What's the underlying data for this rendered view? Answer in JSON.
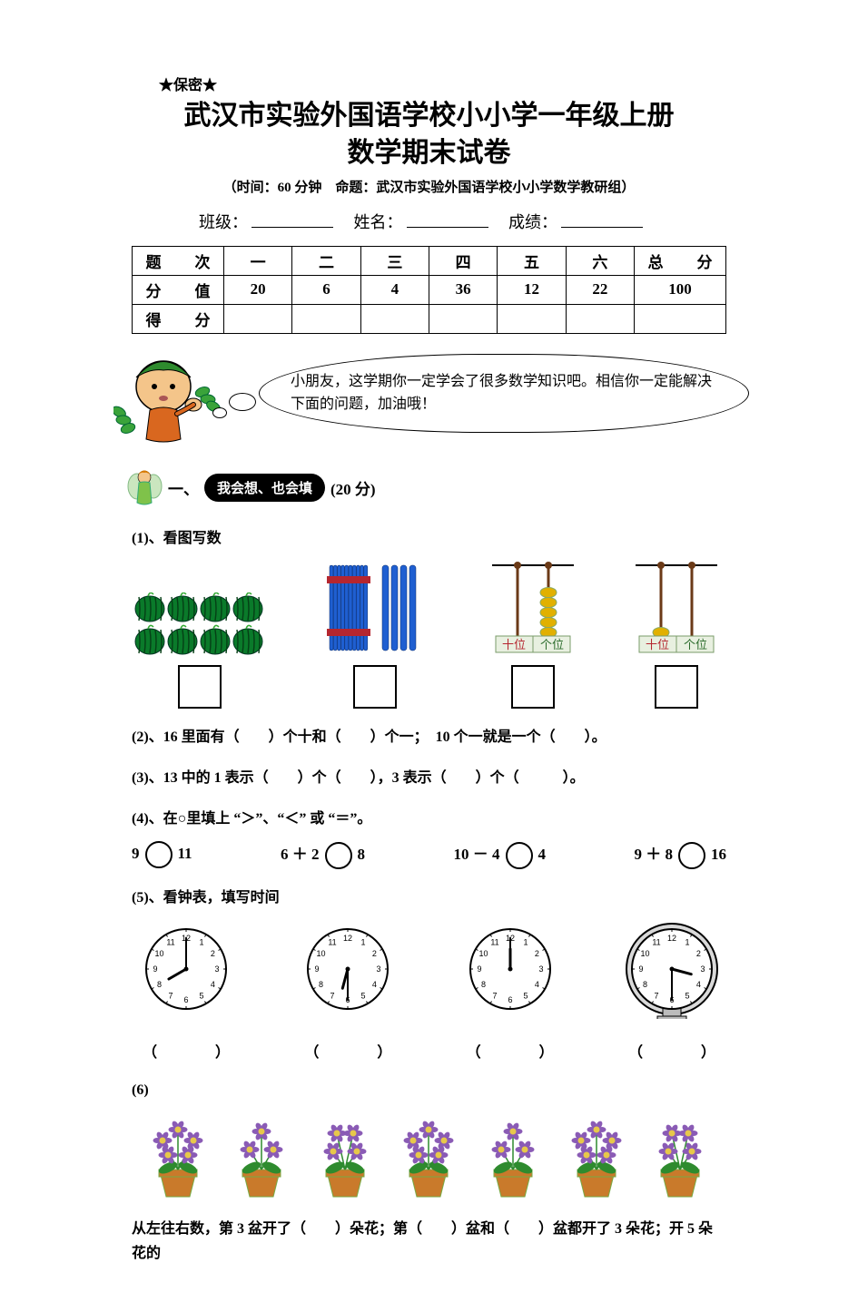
{
  "confidential": "★保密★",
  "title_l1": "武汉市实验外国语学校小小学一年级上册",
  "title_l2": "数学期末试卷",
  "subtitle": "（时间：60 分钟　命题：武汉市实验外国语学校小小学数学教研组）",
  "field_class": "班级：",
  "field_name": "姓名：",
  "field_score": "成绩：",
  "score_table": {
    "headers": [
      "题　次",
      "一",
      "二",
      "三",
      "四",
      "五",
      "六",
      "总　分"
    ],
    "row_value_label": "分　值",
    "values": [
      "20",
      "6",
      "4",
      "36",
      "12",
      "22",
      "100"
    ],
    "row_got_label": "得　分"
  },
  "bubble": "小朋友，这学期你一定学会了很多数学知识吧。相信你一定能解决下面的问题，加油哦！",
  "sec1_num": "一、",
  "sec1_pill": "我会想、也会填",
  "sec1_pts": "(20 分)",
  "q1_label": "(1)、看图写数",
  "q1_items": {
    "melons": {
      "rows": 2,
      "cols": 4,
      "fill": "#0a7a2a",
      "stripe": "#053f16"
    },
    "sticks": {
      "bundle_count": 1,
      "bundle_rods": 10,
      "loose_rods": 4,
      "rod_color": "#1f5fd1",
      "band_color": "#b5262f"
    },
    "abacus_a": {
      "tens": 0,
      "ones": 5,
      "bead_color": "#e1b000",
      "rod_color": "#6b3a17",
      "label_ten": "十位",
      "label_one": "个位"
    },
    "abacus_b": {
      "tens": 1,
      "ones": 0,
      "bead_color": "#e1b000",
      "rod_color": "#6b3a17",
      "label_ten": "十位",
      "label_one": "个位"
    }
  },
  "q2": "(2)、16 里面有（　　）个十和（　　）个一；　10 个一就是一个（　　）。",
  "q3": "(3)、13 中的 1 表示（　　）个（　　），3 表示（　　）个（　　　）。",
  "q4": "(4)、在○里填上 “＞”、“＜” 或 “＝”。",
  "q4_items": [
    "9　○　11",
    "6 ＋ 2　○　8",
    "10 － 4　○　4",
    "9 ＋ 8　○　16"
  ],
  "q4_items_parts": [
    {
      "l": "9",
      "r": "11"
    },
    {
      "l": "6 ＋ 2",
      "r": "8"
    },
    {
      "l": "10 － 4",
      "r": "4"
    },
    {
      "l": "9 ＋ 8",
      "r": "16"
    }
  ],
  "q5": "(5)、看钟表，填写时间",
  "clocks": [
    {
      "hour": 8,
      "minute": 0,
      "style": "plain"
    },
    {
      "hour": 6,
      "minute": 30,
      "style": "plain"
    },
    {
      "hour": 12,
      "minute": 0,
      "style": "plain"
    },
    {
      "hour": 3,
      "minute": 30,
      "style": "fancy"
    }
  ],
  "clock_paren": "（　　　　）",
  "q6_label": "(6)",
  "flower_pots": [
    {
      "flowers": 5,
      "petal": "#8a5bb5",
      "center": "#e7c84a"
    },
    {
      "flowers": 3,
      "petal": "#8a5bb5",
      "center": "#e7c84a"
    },
    {
      "flowers": 4,
      "petal": "#8a5bb5",
      "center": "#e7c84a"
    },
    {
      "flowers": 5,
      "petal": "#8a5bb5",
      "center": "#e7c84a"
    },
    {
      "flowers": 3,
      "petal": "#8a5bb5",
      "center": "#e7c84a"
    },
    {
      "flowers": 5,
      "petal": "#8a5bb5",
      "center": "#e7c84a"
    },
    {
      "flowers": 4,
      "petal": "#8a5bb5",
      "center": "#e7c84a"
    }
  ],
  "flower_pot_color": "#c97a2b",
  "flower_leaf_color": "#2e8b2e",
  "q6_text": "从左往右数，第 3 盆开了（　　）朵花；第（　　）盆和（　　）盆都开了 3 朵花；开 5 朵花的",
  "kid_colors": {
    "hat": "#2e8b2e",
    "face": "#f4c58a",
    "shirt": "#d9671f",
    "leaf": "#3aa33a"
  },
  "fairy_colors": {
    "hair": "#d97a00",
    "dress": "#7fc24a",
    "wing": "#bde0b0"
  }
}
